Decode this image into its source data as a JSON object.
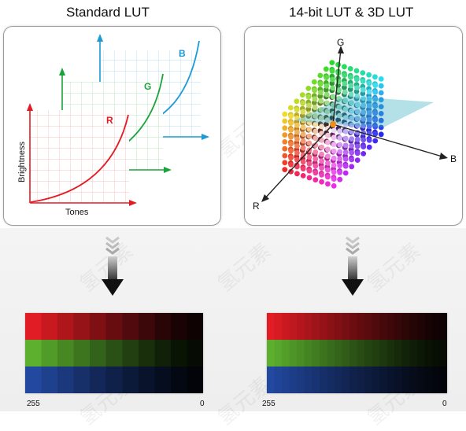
{
  "left_panel": {
    "title": "Standard LUT",
    "channels": [
      "R",
      "G",
      "B"
    ],
    "y_axis_label": "Brightness",
    "x_axis_label": "Tones",
    "colors": {
      "R": "#e31b23",
      "G": "#1aa33b",
      "B": "#1b9ad6"
    }
  },
  "right_panel": {
    "title": "14-bit LUT & 3D LUT",
    "axes": [
      "G",
      "B",
      "R"
    ]
  },
  "arrow_icon": "down-arrow-icon",
  "strip_left": {
    "steps": 11,
    "start_label": "255",
    "end_label": "0"
  },
  "strip_right": {
    "steps": 24,
    "start_label": "255",
    "end_label": "0"
  },
  "watermark_text": "氢元素"
}
